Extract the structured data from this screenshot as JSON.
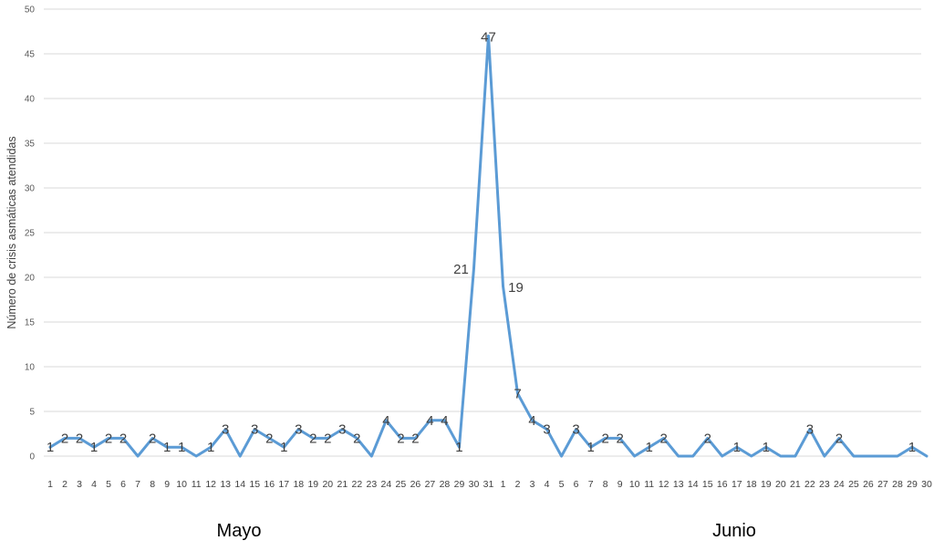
{
  "chart_data": {
    "type": "line",
    "ylabel": "Número de crisis asmáticas atendidas",
    "xlabel": "",
    "ylim": [
      0,
      50
    ],
    "y_ticks": [
      0,
      5,
      10,
      15,
      20,
      25,
      30,
      35,
      40,
      45,
      50
    ],
    "grid": "horizontal",
    "legend": "none",
    "line_color": "#5b9bd5",
    "month_labels": [
      "Mayo",
      "Junio"
    ],
    "categories": [
      "1",
      "2",
      "3",
      "4",
      "5",
      "6",
      "7",
      "8",
      "9",
      "10",
      "11",
      "12",
      "13",
      "14",
      "15",
      "16",
      "17",
      "18",
      "19",
      "20",
      "21",
      "22",
      "23",
      "24",
      "25",
      "26",
      "27",
      "28",
      "29",
      "30",
      "31",
      "1",
      "2",
      "3",
      "4",
      "5",
      "6",
      "7",
      "8",
      "9",
      "10",
      "11",
      "12",
      "13",
      "14",
      "15",
      "16",
      "17",
      "18",
      "19",
      "20",
      "21",
      "22",
      "23",
      "24",
      "25",
      "26",
      "27",
      "28",
      "29",
      "30"
    ],
    "series": [
      {
        "values": [
          1,
          2,
          2,
          1,
          2,
          2,
          0,
          2,
          1,
          1,
          0,
          1,
          3,
          0,
          3,
          2,
          1,
          3,
          2,
          2,
          3,
          2,
          0,
          4,
          2,
          2,
          4,
          4,
          1,
          21,
          47,
          19,
          7,
          4,
          3,
          0,
          3,
          1,
          2,
          2,
          0,
          1,
          2,
          0,
          0,
          2,
          0,
          1,
          0,
          1,
          0,
          0,
          3,
          0,
          2,
          0,
          0,
          0,
          0,
          1,
          0
        ],
        "labels": [
          "1",
          "2",
          "2",
          "1",
          "2",
          "2",
          "",
          "2",
          "1",
          "1",
          "",
          "1",
          "3",
          "",
          "3",
          "2",
          "1",
          "3",
          "2",
          "2",
          "3",
          "2",
          "",
          "4",
          "2",
          "2",
          "4",
          "4",
          "1",
          "21",
          "47",
          "19",
          "7",
          "4",
          "3",
          "",
          "3",
          "1",
          "2",
          "2",
          "",
          "1",
          "2",
          "",
          "",
          "2",
          "",
          "1",
          "",
          "1",
          "",
          "",
          "3",
          "",
          "2",
          "",
          "",
          "",
          "",
          "1",
          ""
        ]
      }
    ]
  }
}
